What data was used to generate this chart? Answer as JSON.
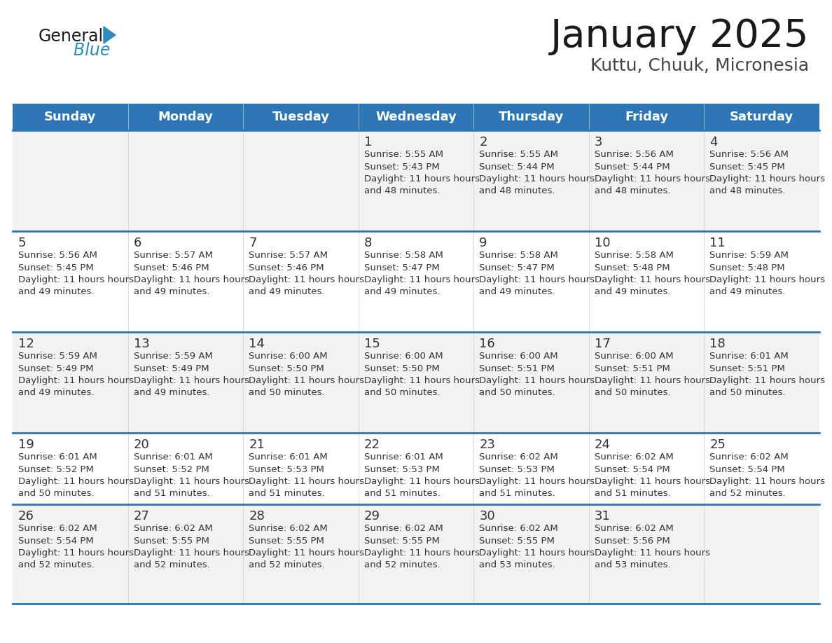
{
  "title": "January 2025",
  "subtitle": "Kuttu, Chuuk, Micronesia",
  "header_bg_color": "#2E75B6",
  "header_text_color": "#FFFFFF",
  "day_names": [
    "Sunday",
    "Monday",
    "Tuesday",
    "Wednesday",
    "Thursday",
    "Friday",
    "Saturday"
  ],
  "row_bg_colors": [
    "#F2F2F2",
    "#FFFFFF"
  ],
  "divider_color": "#2E75B6",
  "text_color": "#333333",
  "logo_blue_color": "#2E8BC0",
  "calendar": [
    [
      null,
      null,
      null,
      {
        "day": 1,
        "sunrise": "5:55 AM",
        "sunset": "5:43 PM",
        "daylight": "11 hours and 48 minutes"
      },
      {
        "day": 2,
        "sunrise": "5:55 AM",
        "sunset": "5:44 PM",
        "daylight": "11 hours and 48 minutes"
      },
      {
        "day": 3,
        "sunrise": "5:56 AM",
        "sunset": "5:44 PM",
        "daylight": "11 hours and 48 minutes"
      },
      {
        "day": 4,
        "sunrise": "5:56 AM",
        "sunset": "5:45 PM",
        "daylight": "11 hours and 48 minutes"
      }
    ],
    [
      {
        "day": 5,
        "sunrise": "5:56 AM",
        "sunset": "5:45 PM",
        "daylight": "11 hours and 49 minutes"
      },
      {
        "day": 6,
        "sunrise": "5:57 AM",
        "sunset": "5:46 PM",
        "daylight": "11 hours and 49 minutes"
      },
      {
        "day": 7,
        "sunrise": "5:57 AM",
        "sunset": "5:46 PM",
        "daylight": "11 hours and 49 minutes"
      },
      {
        "day": 8,
        "sunrise": "5:58 AM",
        "sunset": "5:47 PM",
        "daylight": "11 hours and 49 minutes"
      },
      {
        "day": 9,
        "sunrise": "5:58 AM",
        "sunset": "5:47 PM",
        "daylight": "11 hours and 49 minutes"
      },
      {
        "day": 10,
        "sunrise": "5:58 AM",
        "sunset": "5:48 PM",
        "daylight": "11 hours and 49 minutes"
      },
      {
        "day": 11,
        "sunrise": "5:59 AM",
        "sunset": "5:48 PM",
        "daylight": "11 hours and 49 minutes"
      }
    ],
    [
      {
        "day": 12,
        "sunrise": "5:59 AM",
        "sunset": "5:49 PM",
        "daylight": "11 hours and 49 minutes"
      },
      {
        "day": 13,
        "sunrise": "5:59 AM",
        "sunset": "5:49 PM",
        "daylight": "11 hours and 49 minutes"
      },
      {
        "day": 14,
        "sunrise": "6:00 AM",
        "sunset": "5:50 PM",
        "daylight": "11 hours and 50 minutes"
      },
      {
        "day": 15,
        "sunrise": "6:00 AM",
        "sunset": "5:50 PM",
        "daylight": "11 hours and 50 minutes"
      },
      {
        "day": 16,
        "sunrise": "6:00 AM",
        "sunset": "5:51 PM",
        "daylight": "11 hours and 50 minutes"
      },
      {
        "day": 17,
        "sunrise": "6:00 AM",
        "sunset": "5:51 PM",
        "daylight": "11 hours and 50 minutes"
      },
      {
        "day": 18,
        "sunrise": "6:01 AM",
        "sunset": "5:51 PM",
        "daylight": "11 hours and 50 minutes"
      }
    ],
    [
      {
        "day": 19,
        "sunrise": "6:01 AM",
        "sunset": "5:52 PM",
        "daylight": "11 hours and 50 minutes"
      },
      {
        "day": 20,
        "sunrise": "6:01 AM",
        "sunset": "5:52 PM",
        "daylight": "11 hours and 51 minutes"
      },
      {
        "day": 21,
        "sunrise": "6:01 AM",
        "sunset": "5:53 PM",
        "daylight": "11 hours and 51 minutes"
      },
      {
        "day": 22,
        "sunrise": "6:01 AM",
        "sunset": "5:53 PM",
        "daylight": "11 hours and 51 minutes"
      },
      {
        "day": 23,
        "sunrise": "6:02 AM",
        "sunset": "5:53 PM",
        "daylight": "11 hours and 51 minutes"
      },
      {
        "day": 24,
        "sunrise": "6:02 AM",
        "sunset": "5:54 PM",
        "daylight": "11 hours and 51 minutes"
      },
      {
        "day": 25,
        "sunrise": "6:02 AM",
        "sunset": "5:54 PM",
        "daylight": "11 hours and 52 minutes"
      }
    ],
    [
      {
        "day": 26,
        "sunrise": "6:02 AM",
        "sunset": "5:54 PM",
        "daylight": "11 hours and 52 minutes"
      },
      {
        "day": 27,
        "sunrise": "6:02 AM",
        "sunset": "5:55 PM",
        "daylight": "11 hours and 52 minutes"
      },
      {
        "day": 28,
        "sunrise": "6:02 AM",
        "sunset": "5:55 PM",
        "daylight": "11 hours and 52 minutes"
      },
      {
        "day": 29,
        "sunrise": "6:02 AM",
        "sunset": "5:55 PM",
        "daylight": "11 hours and 52 minutes"
      },
      {
        "day": 30,
        "sunrise": "6:02 AM",
        "sunset": "5:55 PM",
        "daylight": "11 hours and 53 minutes"
      },
      {
        "day": 31,
        "sunrise": "6:02 AM",
        "sunset": "5:56 PM",
        "daylight": "11 hours and 53 minutes"
      },
      null
    ]
  ]
}
